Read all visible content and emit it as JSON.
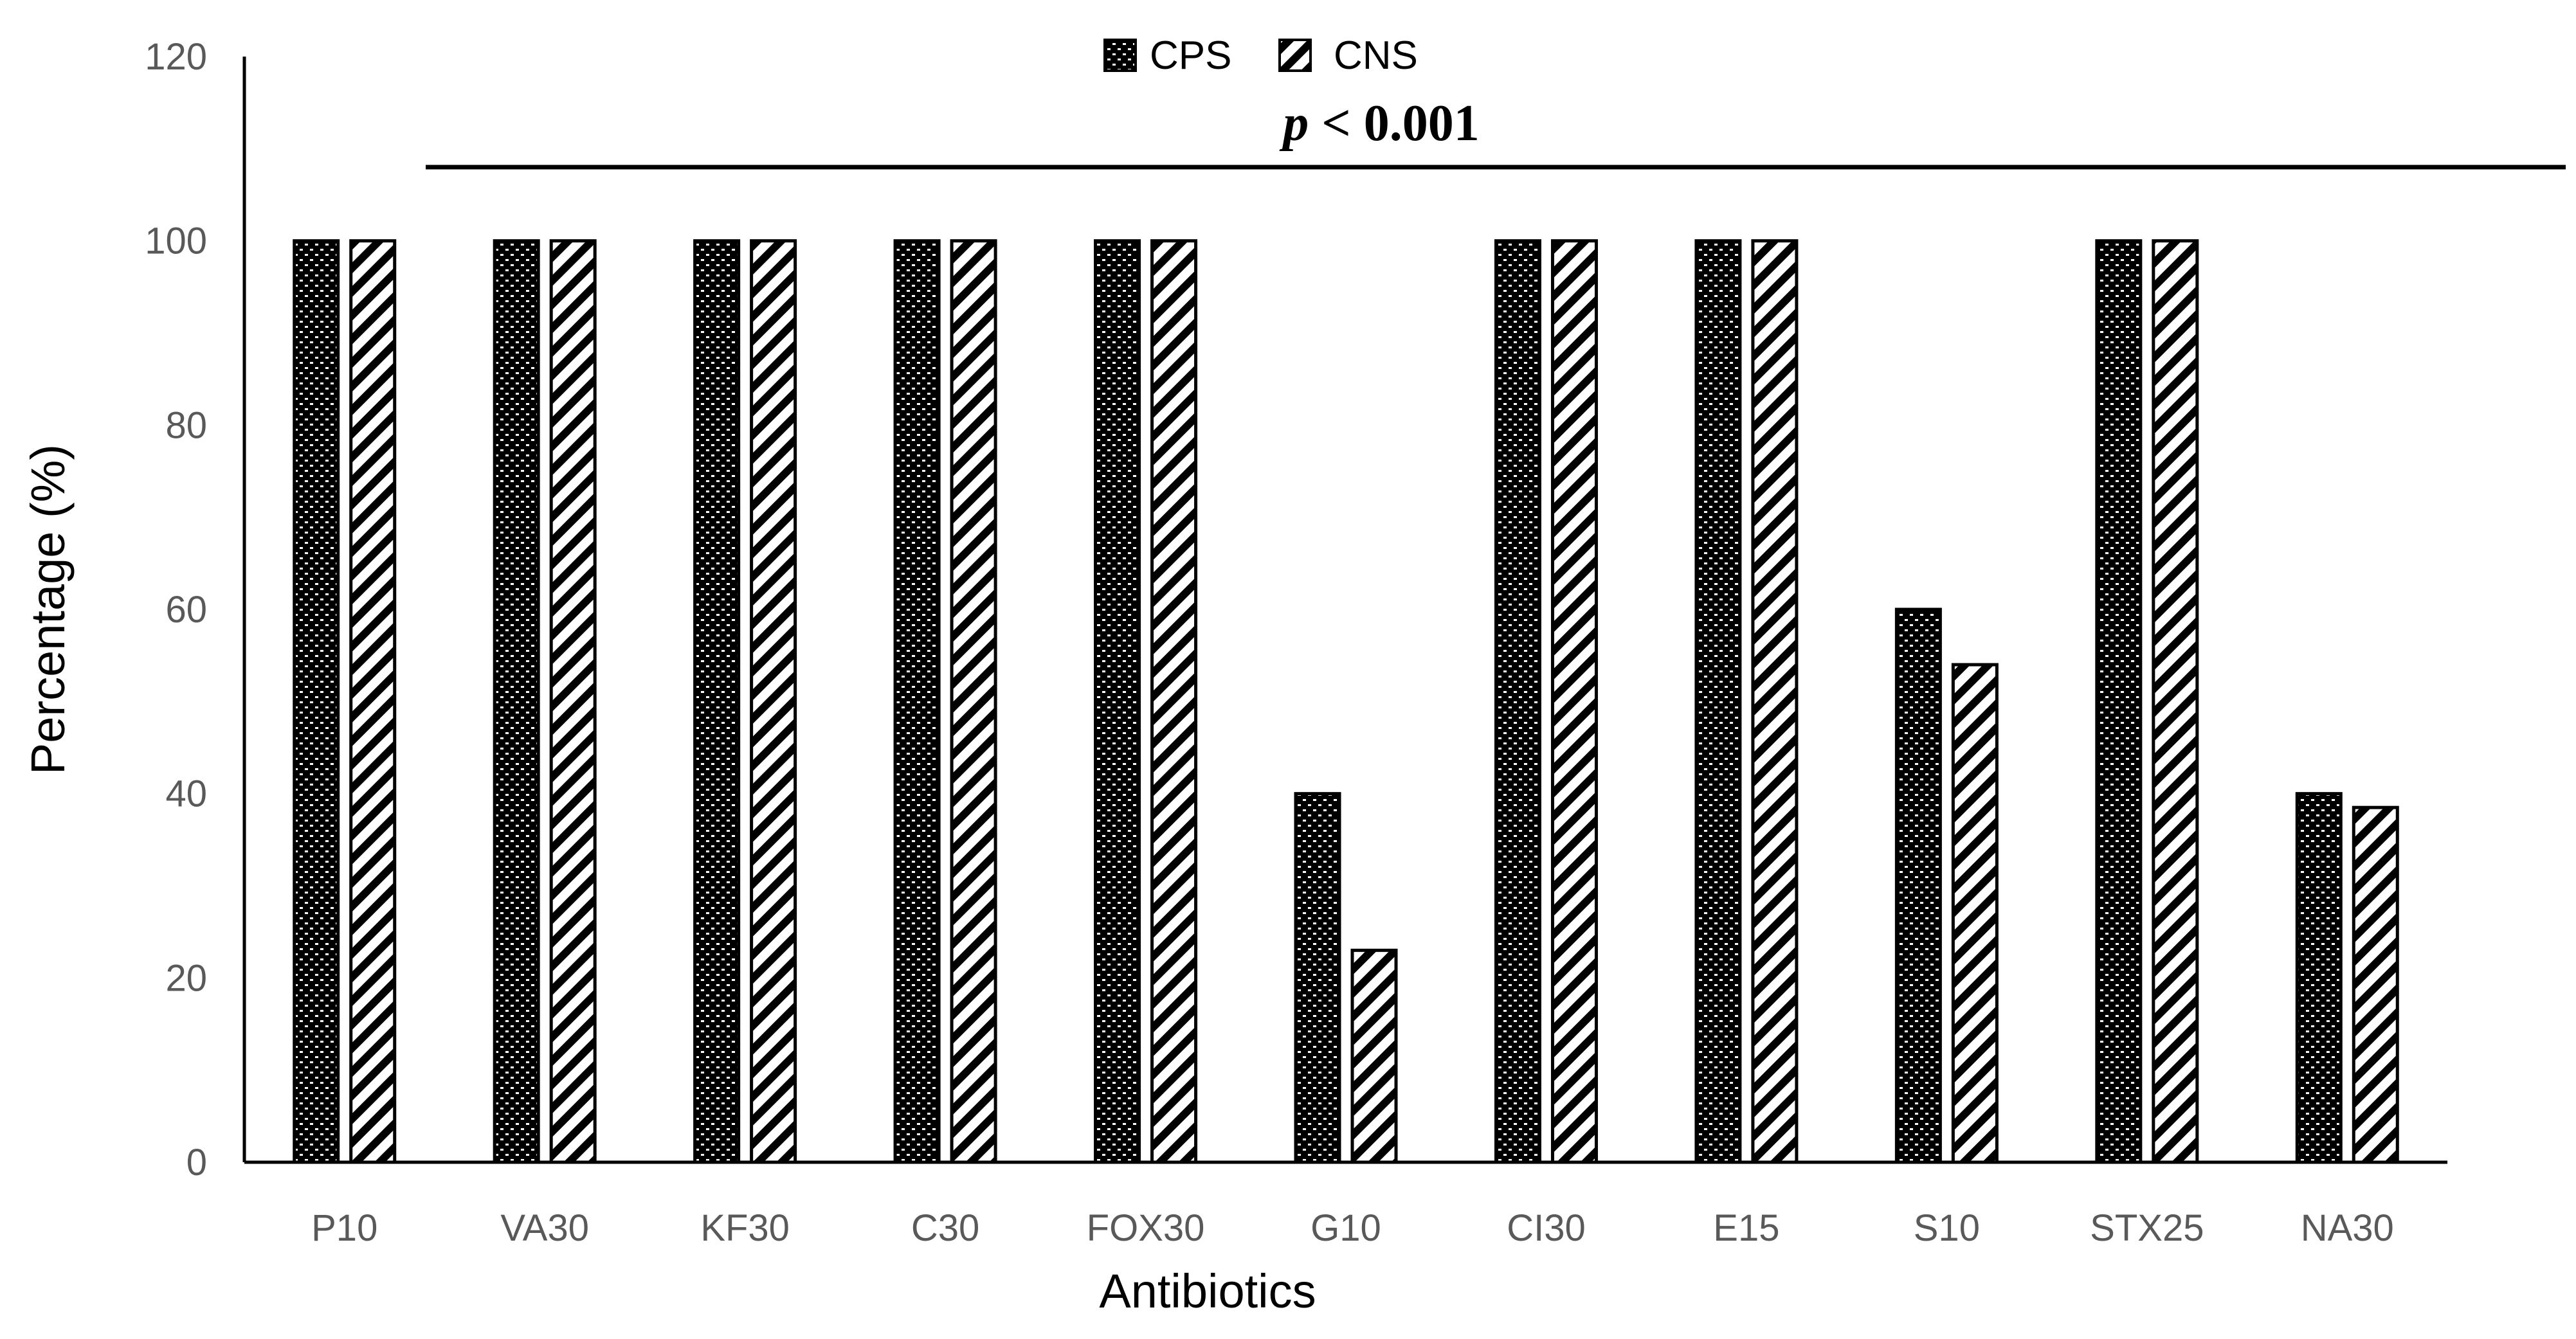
{
  "chart_data": {
    "type": "bar",
    "title": "",
    "xlabel": "Antibiotics",
    "ylabel": "Percentage (%)",
    "ylim": [
      0,
      120
    ],
    "yticks": [
      0,
      20,
      40,
      60,
      80,
      100,
      120
    ],
    "categories": [
      "P10",
      "VA30",
      "KF30",
      "C30",
      "FOX30",
      "G10",
      "CI30",
      "E15",
      "S10",
      "STX25",
      "NA30"
    ],
    "series": [
      {
        "name": "CPS",
        "pattern": "dotted-checker",
        "values": [
          100,
          100,
          100,
          100,
          100,
          40,
          100,
          100,
          60,
          100,
          40
        ]
      },
      {
        "name": "CNS",
        "pattern": "diagonal-stripes",
        "values": [
          100,
          100,
          100,
          100,
          100,
          23,
          100,
          100,
          54,
          100,
          38.5
        ]
      }
    ],
    "legend_position": "top-center",
    "annotation": {
      "p_symbol": "p",
      "text": " < 0.001",
      "line_y_value": 108
    },
    "colors": {
      "bar_stroke": "#000000",
      "fill": "#000000",
      "background": "#ffffff",
      "tick_text": "#595959"
    }
  }
}
